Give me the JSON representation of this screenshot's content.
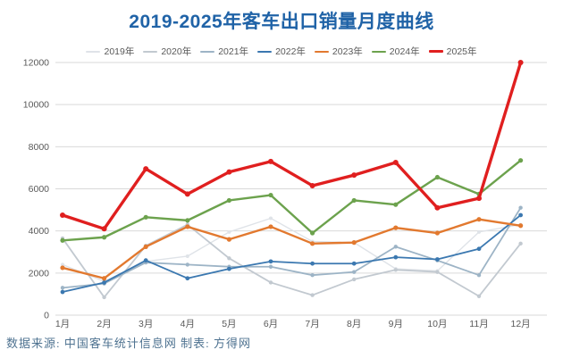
{
  "title": "2019-2025年客车出口销量月度曲线",
  "footer": {
    "source_label": "数据来源: 中国客车统计信息网 制表: 方得网"
  },
  "colors": {
    "title": "#2063a7",
    "axis_text": "#595959",
    "gridline": "#d9d9d9",
    "footer_text": "#4f7391",
    "background": "#ffffff"
  },
  "chart_data": {
    "type": "line",
    "title": "2019-2025年客车出口销量月度曲线",
    "xlabel": "",
    "ylabel": "",
    "categories": [
      "1月",
      "2月",
      "3月",
      "4月",
      "5月",
      "6月",
      "7月",
      "8月",
      "9月",
      "10月",
      "11月",
      "12月"
    ],
    "yticks": [
      0,
      2000,
      4000,
      6000,
      8000,
      10000,
      12000
    ],
    "ylim": [
      0,
      12000
    ],
    "grid": true,
    "legend_position": "top",
    "series": [
      {
        "name": "2019年",
        "color": "#dfe3e8",
        "width": 1.4,
        "marker": 2,
        "values": [
          2400,
          1600,
          2550,
          2800,
          3950,
          4600,
          3500,
          3450,
          2200,
          2100,
          3950,
          4300
        ]
      },
      {
        "name": "2020年",
        "color": "#c2c9d0",
        "width": 1.8,
        "marker": 2.2,
        "values": [
          3650,
          850,
          3300,
          4300,
          2700,
          1550,
          950,
          1700,
          2150,
          2050,
          900,
          3400
        ]
      },
      {
        "name": "2021年",
        "color": "#9db4c6",
        "width": 1.8,
        "marker": 2.2,
        "values": [
          1300,
          1500,
          2500,
          2400,
          2300,
          2300,
          1900,
          2050,
          3250,
          2600,
          1900,
          5100
        ]
      },
      {
        "name": "2022年",
        "color": "#3b78b0",
        "width": 1.8,
        "marker": 2.4,
        "values": [
          1100,
          1550,
          2600,
          1750,
          2200,
          2550,
          2450,
          2450,
          2750,
          2650,
          3150,
          4750
        ]
      },
      {
        "name": "2023年",
        "color": "#e2792f",
        "width": 2.4,
        "marker": 2.6,
        "values": [
          2250,
          1750,
          3250,
          4200,
          3600,
          4200,
          3400,
          3450,
          4150,
          3900,
          4550,
          4250
        ]
      },
      {
        "name": "2024年",
        "color": "#6ca24d",
        "width": 2.4,
        "marker": 2.6,
        "values": [
          3550,
          3700,
          4650,
          4500,
          5450,
          5700,
          3900,
          5450,
          5250,
          6550,
          5750,
          7350
        ]
      },
      {
        "name": "2025年",
        "color": "#e01f1f",
        "width": 3.4,
        "marker": 3,
        "values": [
          4750,
          4100,
          6950,
          5750,
          6800,
          7300,
          6150,
          6650,
          7250,
          5100,
          5550,
          12000
        ]
      }
    ]
  }
}
